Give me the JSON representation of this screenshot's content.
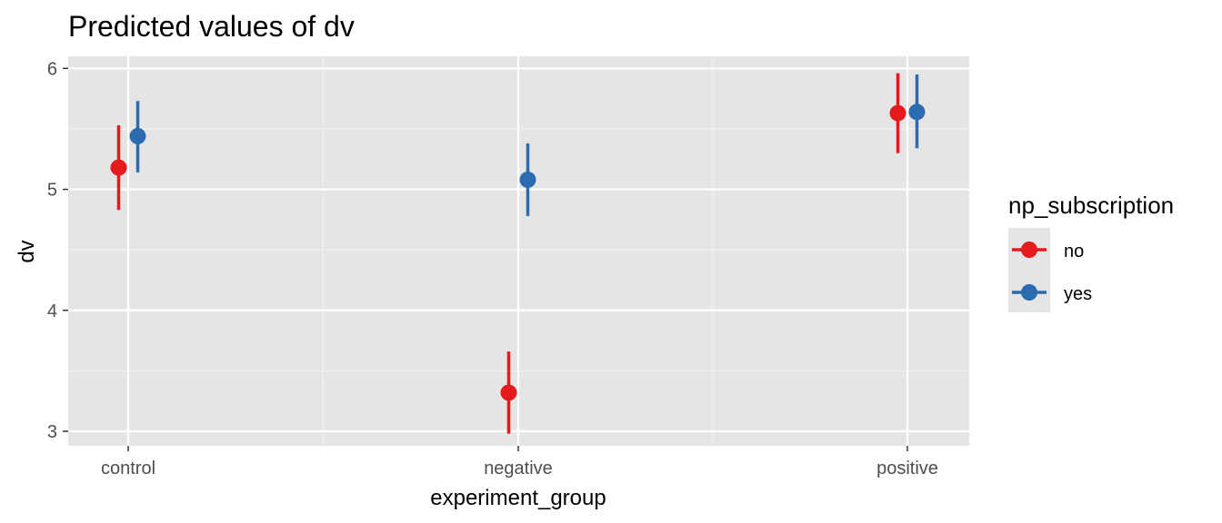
{
  "chart_data": {
    "type": "scatter",
    "title": "Predicted values of dv",
    "xlabel": "experiment_group",
    "ylabel": "dv",
    "categories": [
      "control",
      "negative",
      "positive"
    ],
    "ylim": [
      2.88,
      6.1
    ],
    "yticks": [
      3,
      4,
      5,
      6
    ],
    "grid": true,
    "legend": {
      "title": "np_subscription",
      "position": "right"
    },
    "series": [
      {
        "name": "no",
        "color": "#e41a1c",
        "values": [
          5.18,
          3.32,
          5.63
        ],
        "lower": [
          4.83,
          2.98,
          5.3
        ],
        "upper": [
          5.53,
          3.66,
          5.96
        ]
      },
      {
        "name": "yes",
        "color": "#2b6cb0",
        "values": [
          5.44,
          5.08,
          5.64
        ],
        "lower": [
          5.14,
          4.78,
          5.34
        ],
        "upper": [
          5.73,
          5.38,
          5.95
        ]
      }
    ]
  }
}
